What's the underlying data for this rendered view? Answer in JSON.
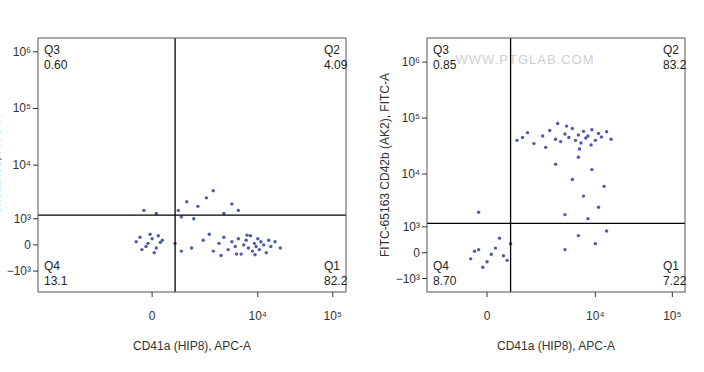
{
  "chart_data": [
    {
      "type": "scatter",
      "log": true,
      "color": "#2b3fa0",
      "xlabel": "CD41a (HIP8), APC-A",
      "ylabel": "Unstained, FITC-A",
      "xlim": [
        -13000,
        150000
      ],
      "ylim": [
        -2600,
        1750000
      ],
      "xticks": [
        0,
        {
          "value": 10000,
          "label": "10⁴"
        },
        {
          "value": 100000,
          "label": "10⁵"
        }
      ],
      "yticks": [
        {
          "value": -1000,
          "label": "−10³"
        },
        0,
        {
          "value": 1000,
          "label": "10³"
        },
        {
          "value": 10000,
          "label": "10⁴"
        },
        {
          "value": 100000,
          "label": "10⁵"
        },
        {
          "value": 1000000,
          "label": "10⁶"
        }
      ],
      "gates": {
        "x": 600,
        "y": 1200
      },
      "quadrants": {
        "names": [
          "Q3",
          "Q2",
          "Q4",
          "Q1"
        ],
        "values": [
          0.6,
          4.09,
          13.1,
          82.2
        ],
        "value_labels": [
          "0.60",
          "4.09",
          "13.1",
          "82.2"
        ]
      },
      "x": [
        -400,
        -250,
        -100,
        0,
        100,
        200,
        -300,
        50,
        150,
        -150,
        250,
        -50,
        1200,
        1800,
        2500,
        3000,
        3500,
        4000,
        4500,
        5000,
        5500,
        6000,
        6500,
        7000,
        7500,
        8000,
        8500,
        9000,
        9500,
        10000,
        10500,
        11000,
        12000,
        13000,
        14000,
        15000,
        17000,
        20000,
        2200,
        3200,
        5200,
        7200,
        9200,
        600,
        800,
        700,
        1000,
        1300,
        1500,
        2500,
        3500,
        800,
        2000,
        4500,
        5500,
        -200,
        100
      ],
      "values": [
        100,
        -150,
        50,
        200,
        -100,
        80,
        250,
        -250,
        300,
        -50,
        150,
        350,
        -100,
        150,
        -200,
        50,
        250,
        -150,
        100,
        -50,
        200,
        -300,
        0,
        150,
        -100,
        300,
        -200,
        50,
        -50,
        200,
        -150,
        100,
        0,
        -250,
        150,
        -50,
        100,
        -100,
        350,
        -350,
        -300,
        320,
        -320,
        50,
        -200,
        1500,
        2200,
        1000,
        1800,
        3500,
        1300,
        1100,
        2600,
        2000,
        1500,
        1500,
        1300
      ]
    },
    {
      "type": "scatter",
      "log": true,
      "color": "#2b3fa0",
      "xlabel": "CD41a (HIP8), APC-A",
      "ylabel": "FITC-65163 CD42b (AK2), FITC-A",
      "annotations": [
        "WWW.PTGLAB.COM"
      ],
      "xlim": [
        -2300,
        146000
      ],
      "ylim": [
        -1900,
        2700000
      ],
      "xticks": [
        0,
        {
          "value": 10000,
          "label": "10⁴"
        },
        {
          "value": 100000,
          "label": "10⁵"
        }
      ],
      "yticks": [
        {
          "value": -1000,
          "label": "−10³"
        },
        0,
        {
          "value": 1000,
          "label": "10³"
        },
        {
          "value": 10000,
          "label": "10⁴"
        },
        {
          "value": 100000,
          "label": "10⁵"
        },
        {
          "value": 1000000,
          "label": "10⁶"
        }
      ],
      "gates": {
        "x": 600,
        "y": 1200
      },
      "quadrants": {
        "names": [
          "Q3",
          "Q2",
          "Q4",
          "Q1"
        ],
        "values": [
          0.85,
          83.2,
          8.7,
          7.22
        ],
        "value_labels": [
          "0.85",
          "83.2",
          "8.70",
          "7.22"
        ]
      },
      "x": [
        800,
        1200,
        1500,
        2000,
        2500,
        3000,
        3500,
        4000,
        4500,
        5000,
        5500,
        6000,
        6500,
        7000,
        7500,
        8000,
        9000,
        10000,
        11000,
        12000,
        14000,
        16000,
        2200,
        4200,
        6200,
        8800,
        3200,
        1000,
        3000,
        5000,
        7000,
        9000,
        11000,
        6000,
        13000,
        4000,
        8000,
        6000,
        10000,
        14000,
        4000,
        -400,
        -200,
        0,
        200,
        400,
        600,
        -100,
        300,
        -300,
        100,
        500,
        -200
      ],
      "values": [
        40000,
        55000,
        35000,
        48000,
        60000,
        42000,
        38000,
        52000,
        45000,
        65000,
        40000,
        50000,
        36000,
        58000,
        44000,
        48000,
        62000,
        40000,
        53000,
        46000,
        57000,
        42000,
        30000,
        72000,
        28000,
        33000,
        80000,
        45000,
        15000,
        8000,
        4000,
        12000,
        2500,
        20000,
        6000,
        1800,
        1500,
        600,
        300,
        800,
        100,
        -200,
        100,
        -300,
        150,
        -100,
        300,
        -500,
        500,
        50,
        -50,
        -250,
        2000
      ]
    }
  ]
}
